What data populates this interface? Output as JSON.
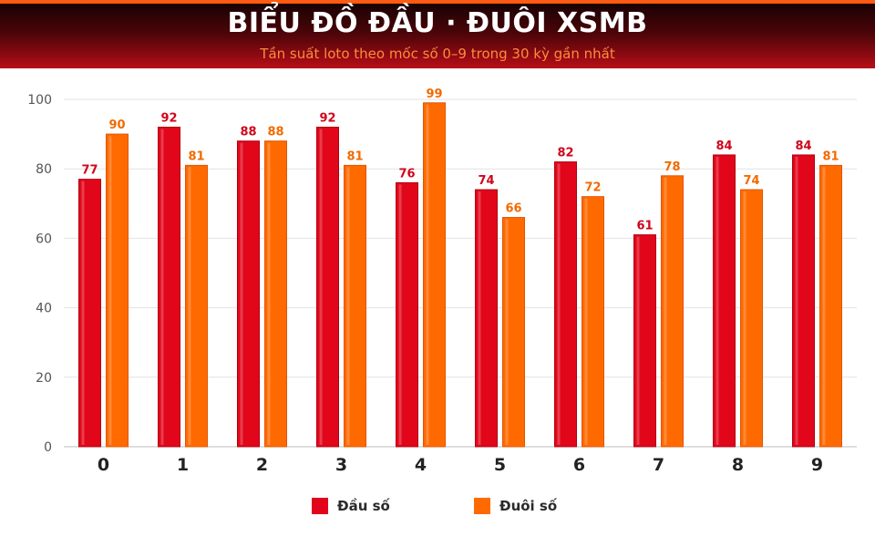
{
  "header": {
    "title": "BIỂU ĐỒ ĐẦU · ĐUÔI XSMB",
    "subtitle": "Tần suất loto theo mốc số 0–9 trong 30 kỳ gần nhất"
  },
  "colors": {
    "dau": "#e2061b",
    "duoi": "#ff6a00",
    "header_sub": "#ff8a3d"
  },
  "chart_data": {
    "type": "bar",
    "categories": [
      "0",
      "1",
      "2",
      "3",
      "4",
      "5",
      "6",
      "7",
      "8",
      "9"
    ],
    "series": [
      {
        "name": "Đầu số",
        "values": [
          77,
          92,
          88,
          92,
          76,
          74,
          82,
          61,
          84,
          84
        ]
      },
      {
        "name": "Đuôi số",
        "values": [
          90,
          81,
          88,
          81,
          99,
          66,
          72,
          78,
          74,
          81
        ]
      }
    ],
    "ylim": [
      0,
      100
    ],
    "yticks": [
      "0",
      "20",
      "40",
      "60",
      "80",
      "100"
    ],
    "grid": true,
    "legend": "bottom-center"
  }
}
